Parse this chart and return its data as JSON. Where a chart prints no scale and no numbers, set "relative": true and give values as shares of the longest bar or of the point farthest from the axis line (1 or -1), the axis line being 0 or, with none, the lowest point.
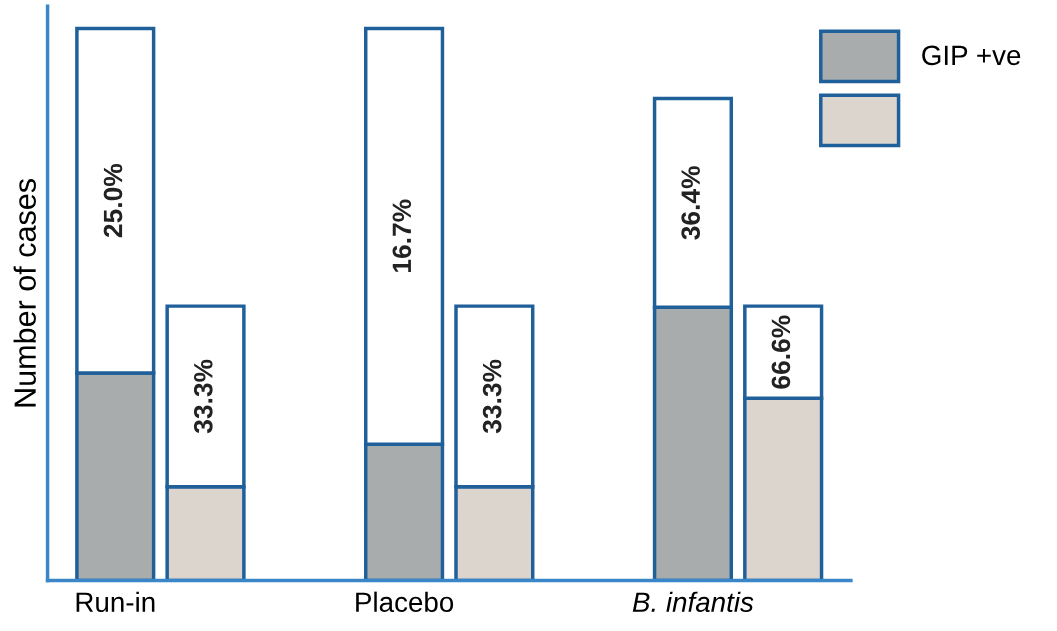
{
  "chart_data": {
    "type": "bar",
    "relative": true,
    "stacked": true,
    "ylabel": "Number of cases",
    "categories": [
      "Run-in",
      null,
      "Placebo",
      null,
      "B. infantis",
      null
    ],
    "series": [
      {
        "name": "GIP +ve",
        "color": "#a9acac",
        "values": [
          0.376,
          null,
          0.247,
          null,
          0.495,
          null
        ]
      },
      {
        "color": "#dbd5ce",
        "values": [
          null,
          0.17,
          null,
          0.17,
          null,
          0.33
        ]
      },
      {
        "color": "#ffffff",
        "values": [
          0.624,
          0.327,
          0.753,
          0.327,
          0.378,
          0.167
        ]
      }
    ],
    "annotations": [
      "25.0%",
      "33.3%",
      "16.7%",
      "33.3%",
      "36.4%",
      "66.6%"
    ],
    "legend": "top right",
    "grid": false
  }
}
